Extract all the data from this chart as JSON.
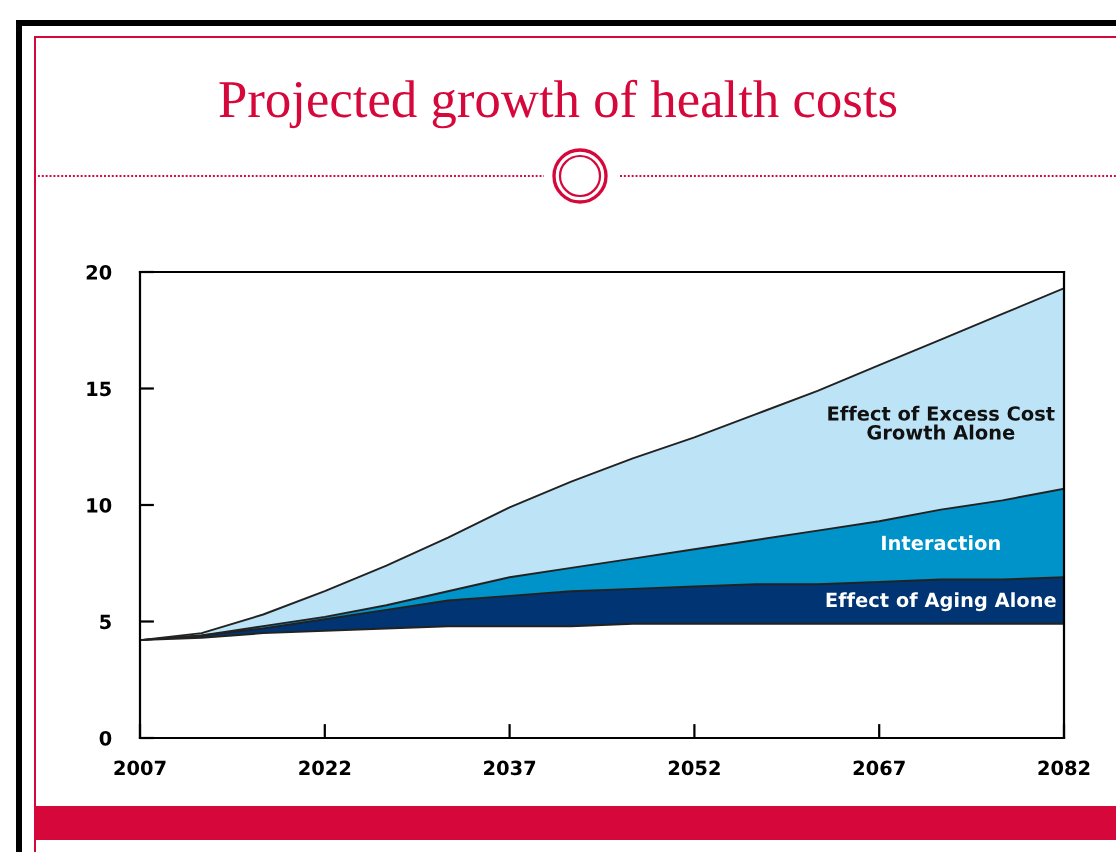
{
  "chart_data": {
    "type": "area",
    "title": "Projected growth of health costs",
    "stacked": true,
    "x": [
      2007,
      2012,
      2017,
      2022,
      2027,
      2032,
      2037,
      2042,
      2047,
      2052,
      2057,
      2062,
      2067,
      2072,
      2077,
      2082
    ],
    "series": [
      {
        "color": "#ffffff",
        "values": [
          4.2,
          4.3,
          4.5,
          4.6,
          4.7,
          4.8,
          4.8,
          4.8,
          4.9,
          4.9,
          4.9,
          4.9,
          4.9,
          4.9,
          4.9,
          4.9
        ]
      },
      {
        "name": "Effect of Aging Alone",
        "color": "#003473",
        "values": [
          0,
          0.1,
          0.2,
          0.5,
          0.8,
          1.1,
          1.3,
          1.5,
          1.5,
          1.6,
          1.7,
          1.7,
          1.8,
          1.9,
          1.9,
          2.0
        ]
      },
      {
        "name": "Interaction",
        "color": "#0093c9",
        "values": [
          0,
          0,
          0.1,
          0.1,
          0.2,
          0.4,
          0.8,
          1.0,
          1.3,
          1.6,
          1.9,
          2.3,
          2.6,
          3.0,
          3.4,
          3.8
        ]
      },
      {
        "name": "Effect of Excess Cost\nGrowth Alone",
        "color": "#bce3f6",
        "values": [
          0,
          0.1,
          0.5,
          1.1,
          1.7,
          2.3,
          3.0,
          3.7,
          4.3,
          4.8,
          5.4,
          6.0,
          6.7,
          7.3,
          8.0,
          8.6
        ]
      }
    ],
    "xlim": [
      2007,
      2082
    ],
    "xticks": [
      2007,
      2022,
      2037,
      2052,
      2067,
      2082
    ],
    "ylim": [
      0,
      20
    ],
    "yticks": [
      0,
      5,
      10,
      15,
      20
    ],
    "grid": false,
    "legend": false
  }
}
